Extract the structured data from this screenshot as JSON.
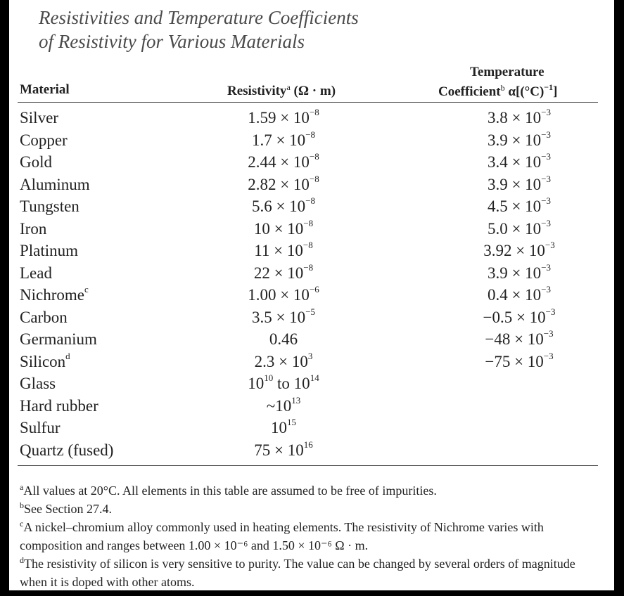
{
  "title": {
    "line1": "Resistivities and Temperature Coefficients",
    "line2": "of Resistivity for Various Materials"
  },
  "headers": {
    "material": "Material",
    "resistivity_label": "Resistivity",
    "resistivity_note": "a",
    "resistivity_unit": " (Ω · m)",
    "tc_line1": "Temperature",
    "tc_label": "Coefficient",
    "tc_note": "b",
    "tc_unit_pre": " α[(°C)",
    "tc_unit_exp": "−1",
    "tc_unit_post": "]"
  },
  "rows": [
    {
      "material": "Silver",
      "note": "",
      "res_base": "1.59 × 10",
      "res_exp": "−8",
      "tc_base": "3.8 × 10",
      "tc_exp": "−3"
    },
    {
      "material": "Copper",
      "note": "",
      "res_base": "1.7 × 10",
      "res_exp": "−8",
      "tc_base": "3.9 × 10",
      "tc_exp": "−3"
    },
    {
      "material": "Gold",
      "note": "",
      "res_base": "2.44 × 10",
      "res_exp": "−8",
      "tc_base": "3.4 × 10",
      "tc_exp": "−3"
    },
    {
      "material": "Aluminum",
      "note": "",
      "res_base": "2.82 × 10",
      "res_exp": "−8",
      "tc_base": "3.9 × 10",
      "tc_exp": "−3"
    },
    {
      "material": "Tungsten",
      "note": "",
      "res_base": "5.6 × 10",
      "res_exp": "−8",
      "tc_base": "4.5 × 10",
      "tc_exp": "−3"
    },
    {
      "material": "Iron",
      "note": "",
      "res_base": "10 × 10",
      "res_exp": "−8",
      "tc_base": "5.0 × 10",
      "tc_exp": "−3"
    },
    {
      "material": "Platinum",
      "note": "",
      "res_base": "11 × 10",
      "res_exp": "−8",
      "tc_base": "3.92 × 10",
      "tc_exp": "−3"
    },
    {
      "material": "Lead",
      "note": "",
      "res_base": "22 × 10",
      "res_exp": "−8",
      "tc_base": "3.9 × 10",
      "tc_exp": "−3"
    },
    {
      "material": "Nichrome",
      "note": "c",
      "res_base": "1.00 × 10",
      "res_exp": "−6",
      "tc_base": "0.4 × 10",
      "tc_exp": "−3"
    },
    {
      "material": "Carbon",
      "note": "",
      "res_base": "3.5 × 10",
      "res_exp": "−5",
      "tc_base": "−0.5 × 10",
      "tc_exp": "−3"
    },
    {
      "material": "Germanium",
      "note": "",
      "res_base": "0.46",
      "res_exp": "",
      "tc_base": "−48 × 10",
      "tc_exp": "−3"
    },
    {
      "material": "Silicon",
      "note": "d",
      "res_base": "2.3 × 10",
      "res_exp": "3",
      "tc_base": "−75 × 10",
      "tc_exp": "−3"
    },
    {
      "material": "Glass",
      "note": "",
      "res_base": "10",
      "res_exp": "10",
      "res_mid": " to 10",
      "res_exp2": "14",
      "tc_base": "",
      "tc_exp": ""
    },
    {
      "material": "Hard rubber",
      "note": "",
      "res_base": "~10",
      "res_exp": "13",
      "tc_base": "",
      "tc_exp": ""
    },
    {
      "material": "Sulfur",
      "note": "",
      "res_base": "10",
      "res_exp": "15",
      "tc_base": "",
      "tc_exp": ""
    },
    {
      "material": "Quartz (fused)",
      "note": "",
      "res_base": "75 × 10",
      "res_exp": "16",
      "tc_base": "",
      "tc_exp": ""
    }
  ],
  "footnotes": [
    {
      "mark": "a",
      "text": "All values at 20°C. All elements in this table are assumed to be free of impurities."
    },
    {
      "mark": "b",
      "text": "See Section 27.4."
    },
    {
      "mark": "c",
      "text": "A nickel–chromium alloy commonly used in heating elements. The resistivity of Nichrome varies with composition and ranges between 1.00 × 10⁻⁶ and 1.50 × 10⁻⁶ Ω · m."
    },
    {
      "mark": "d",
      "text": "The resistivity of silicon is very sensitive to purity. The value can be changed by several orders of magnitude when it is doped with other atoms."
    }
  ]
}
